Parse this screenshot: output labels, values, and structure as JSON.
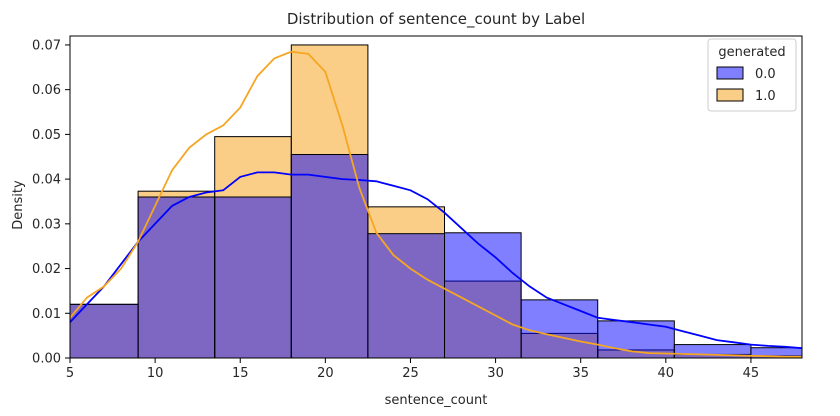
{
  "chart_data": {
    "type": "histogram",
    "title": "Distribution of sentence_count by Label",
    "xlabel": "sentence_count",
    "ylabel": "Density",
    "xlim": [
      5,
      48
    ],
    "ylim": [
      0,
      0.072
    ],
    "xticks": [
      5,
      10,
      15,
      20,
      25,
      30,
      35,
      40,
      45
    ],
    "yticks": [
      0.0,
      0.01,
      0.02,
      0.03,
      0.04,
      0.05,
      0.06,
      0.07
    ],
    "xtick_labels": [
      "5",
      "10",
      "15",
      "20",
      "25",
      "30",
      "35",
      "40",
      "45"
    ],
    "ytick_labels": [
      "0.00",
      "0.01",
      "0.02",
      "0.03",
      "0.04",
      "0.05",
      "0.06",
      "0.07"
    ],
    "bin_edges": [
      5,
      9,
      13.5,
      18,
      22.5,
      27,
      31.5,
      36,
      40.5,
      45,
      48
    ],
    "legend": {
      "title": "generated",
      "position": "top-right"
    },
    "series": [
      {
        "name": "0.0",
        "color": "#0000ff",
        "fill": "rgba(0,0,255,0.5)",
        "values": [
          0.012,
          0.036,
          0.036,
          0.0455,
          0.0278,
          0.028,
          0.013,
          0.0083,
          0.003,
          0.0023
        ],
        "kde_x": [
          5,
          6,
          7,
          8,
          9,
          10,
          11,
          12,
          13,
          14,
          15,
          16,
          17,
          18,
          19,
          20,
          21,
          22,
          23,
          24,
          25,
          26,
          27,
          28,
          29,
          30,
          31,
          32,
          33,
          34,
          35,
          36,
          37,
          38,
          39,
          40,
          41,
          42,
          43,
          44,
          45,
          46,
          47,
          48
        ],
        "kde_y": [
          0.008,
          0.012,
          0.016,
          0.021,
          0.026,
          0.03,
          0.034,
          0.036,
          0.037,
          0.0375,
          0.0405,
          0.0415,
          0.0415,
          0.041,
          0.041,
          0.0405,
          0.04,
          0.0398,
          0.0395,
          0.0385,
          0.0375,
          0.0355,
          0.0325,
          0.029,
          0.0255,
          0.0225,
          0.019,
          0.016,
          0.0135,
          0.012,
          0.0105,
          0.009,
          0.0085,
          0.008,
          0.0075,
          0.007,
          0.006,
          0.005,
          0.004,
          0.0035,
          0.003,
          0.0027,
          0.0025,
          0.0022
        ]
      },
      {
        "name": "1.0",
        "color": "#f5a623",
        "fill": "rgba(245,166,35,0.55)",
        "values": [
          0.012,
          0.0373,
          0.0495,
          0.07,
          0.0338,
          0.0172,
          0.0055,
          0.0018,
          0.0008,
          0.0005
        ],
        "kde_x": [
          5,
          6,
          7,
          8,
          9,
          10,
          11,
          12,
          13,
          14,
          15,
          16,
          17,
          18,
          19,
          20,
          21,
          22,
          23,
          24,
          25,
          26,
          27,
          28,
          29,
          30,
          31,
          32,
          33,
          34,
          35,
          36,
          37,
          38,
          39,
          40,
          41,
          42,
          43,
          44,
          45,
          46,
          47,
          48
        ],
        "kde_y": [
          0.009,
          0.0135,
          0.016,
          0.02,
          0.026,
          0.034,
          0.042,
          0.047,
          0.05,
          0.052,
          0.056,
          0.063,
          0.067,
          0.0685,
          0.068,
          0.064,
          0.052,
          0.038,
          0.028,
          0.023,
          0.02,
          0.0175,
          0.0155,
          0.0135,
          0.0115,
          0.0095,
          0.0075,
          0.0062,
          0.0053,
          0.0045,
          0.0037,
          0.003,
          0.0022,
          0.0015,
          0.0011,
          0.001,
          0.0009,
          0.0008,
          0.0007,
          0.0006,
          0.0005,
          0.0004,
          0.0003,
          0.0003
        ]
      }
    ]
  }
}
